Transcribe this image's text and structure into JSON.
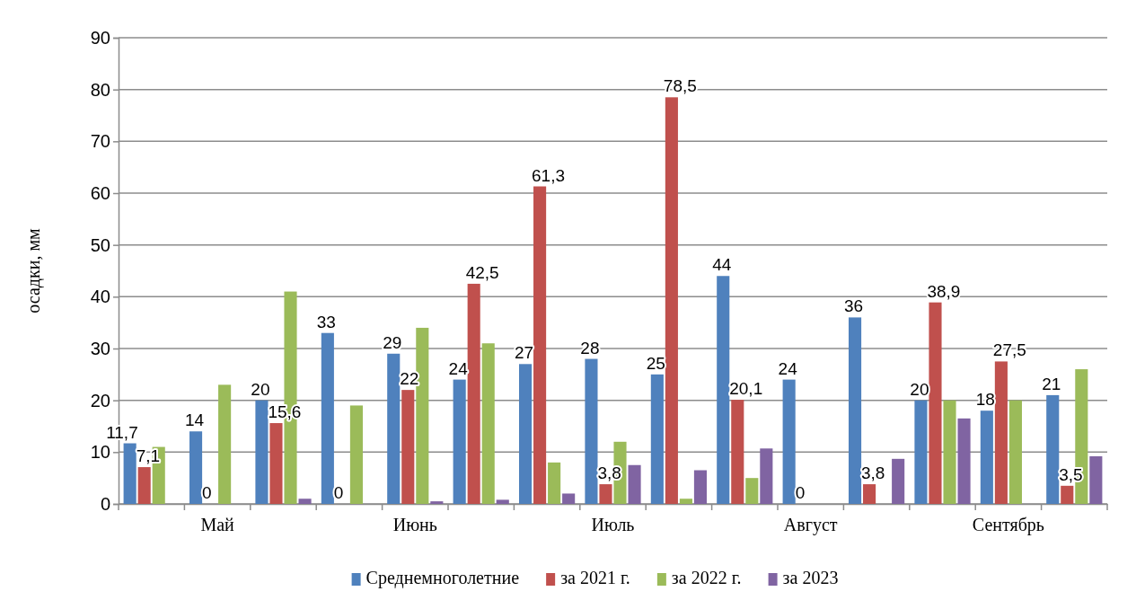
{
  "chart_data": {
    "type": "bar",
    "ylabel": "осадки, мм",
    "categories": [
      null,
      "Май",
      null,
      null,
      "Июнь",
      null,
      null,
      "Июль",
      null,
      null,
      "Август",
      null,
      null,
      "Сентябрь",
      null
    ],
    "series": [
      {
        "name": "Среднемноголетние",
        "color": "#4f81bd",
        "values": [
          11.7,
          14,
          20,
          33,
          29,
          24,
          27,
          28,
          25,
          44,
          24,
          36,
          20,
          18,
          21
        ],
        "value_labels": [
          "11,7",
          "14",
          "20",
          "33",
          "29",
          "24",
          "27",
          "28",
          "25",
          "44",
          "24",
          "36",
          "20",
          "18",
          "21"
        ]
      },
      {
        "name": "за 2021 г.",
        "color": "#c0504d",
        "values": [
          7.1,
          0,
          15.6,
          0,
          22,
          42.5,
          61.3,
          3.8,
          78.5,
          20.1,
          0,
          3.8,
          38.9,
          27.5,
          3.5
        ],
        "value_labels": [
          "7,1",
          "0",
          "15,6",
          "0",
          "22",
          "42,5",
          "61,3",
          "3,8",
          "78,5",
          "20,1",
          "0",
          "3,8",
          "38,9",
          "27,5",
          "3,5"
        ]
      },
      {
        "name": "за 2022 г.",
        "color": "#9bbb59",
        "values": [
          11,
          23,
          41,
          19,
          34,
          31,
          8,
          12,
          1,
          5,
          0,
          0,
          20,
          20,
          26
        ]
      },
      {
        "name": "за 2023",
        "color": "#8064a2",
        "values": [
          0,
          0,
          1,
          0,
          0.5,
          0.8,
          2,
          7.5,
          6.5,
          10.7,
          0,
          8.7,
          16.5,
          0,
          9.2
        ]
      }
    ],
    "ylim": [
      0,
      90
    ],
    "yticks": [
      0,
      10,
      20,
      30,
      40,
      50,
      60,
      70,
      80,
      90
    ],
    "grid": "y",
    "legend": "bottom"
  }
}
